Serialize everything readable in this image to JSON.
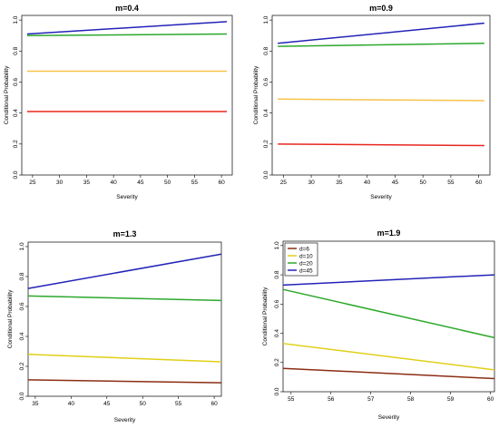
{
  "chart_data": [
    {
      "type": "line",
      "title": "m=0.4",
      "xlabel": "Severity",
      "ylabel": "Conditional Probability",
      "xlim": [
        23,
        62
      ],
      "ylim": [
        0,
        1.03
      ],
      "x_ticks": [
        25,
        30,
        35,
        40,
        45,
        50,
        55,
        60
      ],
      "y_ticks": [
        "0.0",
        "0.2",
        "0.4",
        "0.6",
        "0.8",
        "1.0"
      ],
      "y_tick_values": [
        0,
        0.2,
        0.4,
        0.6,
        0.8,
        1.0
      ],
      "series": [
        {
          "color": "#e8261f",
          "x": [
            24,
            61
          ],
          "y": [
            0.41,
            0.41
          ]
        },
        {
          "color": "#f7c24a",
          "x": [
            24,
            61
          ],
          "y": [
            0.67,
            0.67
          ]
        },
        {
          "color": "#2ca82c",
          "x": [
            24,
            61
          ],
          "y": [
            0.9,
            0.91
          ]
        },
        {
          "color": "#2323b8",
          "x": [
            24,
            61
          ],
          "y": [
            0.91,
            0.99
          ]
        }
      ]
    },
    {
      "type": "line",
      "title": "m=0.9",
      "xlabel": "Severity",
      "ylabel": "Conditional Probability",
      "xlim": [
        23,
        62
      ],
      "ylim": [
        0,
        1.03
      ],
      "x_ticks": [
        25,
        30,
        35,
        40,
        45,
        50,
        55,
        60
      ],
      "y_ticks": [
        "0.0",
        "0.2",
        "0.4",
        "0.6",
        "0.8",
        "1.0"
      ],
      "y_tick_values": [
        0,
        0.2,
        0.4,
        0.6,
        0.8,
        1.0
      ],
      "series": [
        {
          "color": "#e8261f",
          "x": [
            24,
            61
          ],
          "y": [
            0.2,
            0.19
          ]
        },
        {
          "color": "#f7c24a",
          "x": [
            24,
            61
          ],
          "y": [
            0.49,
            0.48
          ]
        },
        {
          "color": "#2ca82c",
          "x": [
            24,
            61
          ],
          "y": [
            0.83,
            0.85
          ]
        },
        {
          "color": "#2323b8",
          "x": [
            24,
            61
          ],
          "y": [
            0.85,
            0.98
          ]
        }
      ]
    },
    {
      "type": "line",
      "title": "m=1.3",
      "xlabel": "Severity",
      "ylabel": "Conditional Probability",
      "xlim": [
        34,
        61
      ],
      "ylim": [
        0,
        1.03
      ],
      "x_ticks": [
        35,
        40,
        45,
        50,
        55,
        60
      ],
      "y_ticks": [
        "0.0",
        "0.2",
        "0.4",
        "0.6",
        "0.8",
        "1.0"
      ],
      "y_tick_values": [
        0,
        0.2,
        0.4,
        0.6,
        0.8,
        1.0
      ],
      "series": [
        {
          "color": "#8b2d14",
          "x": [
            34,
            61
          ],
          "y": [
            0.11,
            0.09
          ]
        },
        {
          "color": "#e0cf17",
          "x": [
            34,
            61
          ],
          "y": [
            0.28,
            0.23
          ]
        },
        {
          "color": "#2ca82c",
          "x": [
            34,
            61
          ],
          "y": [
            0.67,
            0.64
          ]
        },
        {
          "color": "#2323b8",
          "x": [
            34,
            61
          ],
          "y": [
            0.72,
            0.95
          ]
        }
      ]
    },
    {
      "type": "line",
      "title": "m=1.9",
      "xlabel": "Severity",
      "ylabel": "Conditional Probability",
      "xlim": [
        54.8,
        60.1
      ],
      "ylim": [
        0,
        1.03
      ],
      "x_ticks": [
        55,
        56,
        57,
        58,
        59,
        60
      ],
      "y_ticks": [
        "0.0",
        "0.2",
        "0.4",
        "0.6",
        "0.8",
        "1.0"
      ],
      "y_tick_values": [
        0,
        0.2,
        0.4,
        0.6,
        0.8,
        1.0
      ],
      "legend": {
        "position": "top-left",
        "entries": [
          {
            "label": "d=6",
            "color": "#8b2d14"
          },
          {
            "label": "d=10",
            "color": "#e0cf17"
          },
          {
            "label": "d=20",
            "color": "#2ca82c"
          },
          {
            "label": "d=45",
            "color": "#2323b8"
          }
        ]
      },
      "series": [
        {
          "name": "d=6",
          "color": "#8b2d14",
          "x": [
            54.8,
            60.1
          ],
          "y": [
            0.16,
            0.09
          ]
        },
        {
          "name": "d=10",
          "color": "#e0cf17",
          "x": [
            54.8,
            60.1
          ],
          "y": [
            0.33,
            0.15
          ]
        },
        {
          "name": "d=20",
          "color": "#2ca82c",
          "x": [
            54.8,
            60.1
          ],
          "y": [
            0.7,
            0.37
          ]
        },
        {
          "name": "d=45",
          "color": "#2323b8",
          "x": [
            54.8,
            60.1
          ],
          "y": [
            0.73,
            0.8
          ]
        }
      ]
    }
  ]
}
